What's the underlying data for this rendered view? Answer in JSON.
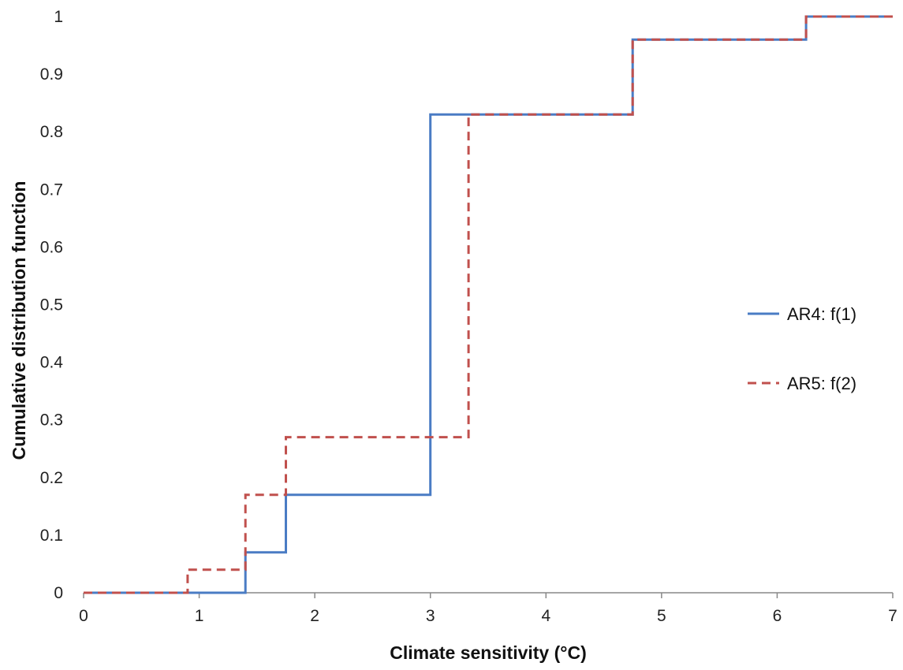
{
  "chart_data": {
    "type": "line",
    "title": "",
    "xlabel": "Climate sensitivity (°C)",
    "ylabel": "Cumulative distribution function",
    "xlim": [
      0,
      7
    ],
    "ylim": [
      0,
      1
    ],
    "x_ticks": [
      0,
      1,
      2,
      3,
      4,
      5,
      6,
      7
    ],
    "x_tick_labels": [
      "0",
      "1",
      "2",
      "3",
      "4",
      "5",
      "6",
      "7"
    ],
    "y_ticks": [
      0,
      0.1,
      0.2,
      0.3,
      0.4,
      0.5,
      0.6,
      0.7,
      0.8,
      0.9,
      1
    ],
    "y_tick_labels": [
      "0",
      "0.1",
      "0.2",
      "0.3",
      "0.4",
      "0.5",
      "0.6",
      "0.7",
      "0.8",
      "0.9",
      "1"
    ],
    "grid": false,
    "legend_position": "right",
    "step": true,
    "series": [
      {
        "name": "AR4: f(1)",
        "color": "#4A7CC4",
        "line_style": "solid",
        "points": [
          [
            0,
            0
          ],
          [
            1.4,
            0
          ],
          [
            1.4,
            0.07
          ],
          [
            1.75,
            0.07
          ],
          [
            1.75,
            0.17
          ],
          [
            3.0,
            0.17
          ],
          [
            3.0,
            0.83
          ],
          [
            4.75,
            0.83
          ],
          [
            4.75,
            0.96
          ],
          [
            6.25,
            0.96
          ],
          [
            6.25,
            1.0
          ],
          [
            7.0,
            1.0
          ]
        ]
      },
      {
        "name": "AR5: f(2)",
        "color": "#C0504D",
        "line_style": "dashed",
        "points": [
          [
            0,
            0
          ],
          [
            0.9,
            0
          ],
          [
            0.9,
            0.04
          ],
          [
            1.4,
            0.04
          ],
          [
            1.4,
            0.17
          ],
          [
            1.75,
            0.17
          ],
          [
            1.75,
            0.27
          ],
          [
            3.33,
            0.27
          ],
          [
            3.33,
            0.83
          ],
          [
            4.75,
            0.83
          ],
          [
            4.75,
            0.96
          ],
          [
            6.25,
            0.96
          ],
          [
            6.25,
            1.0
          ],
          [
            7.0,
            1.0
          ]
        ]
      }
    ]
  }
}
